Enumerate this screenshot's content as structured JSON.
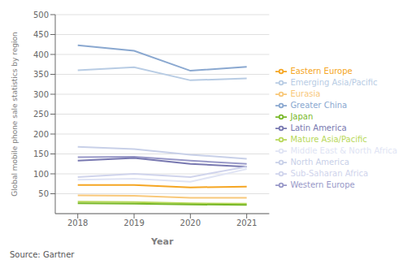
{
  "chart_data": {
    "type": "line",
    "x": [
      2018,
      2019,
      2020,
      2021
    ],
    "series": [
      {
        "name": "Greater China",
        "values": [
          423,
          409,
          359,
          369
        ],
        "color": "#8aa8d0"
      },
      {
        "name": "Emerging Asia/Pacific",
        "values": [
          360,
          368,
          335,
          340
        ],
        "color": "#b8cce4"
      },
      {
        "name": "North America",
        "values": [
          168,
          162,
          148,
          138
        ],
        "color": "#c8d0e8"
      },
      {
        "name": "Western Europe",
        "values": [
          142,
          143,
          133,
          125
        ],
        "color": "#9898c8"
      },
      {
        "name": "Latin America",
        "values": [
          133,
          140,
          125,
          118
        ],
        "color": "#7878b0"
      },
      {
        "name": "Sub-Saharan Africa",
        "values": [
          92,
          100,
          92,
          118
        ],
        "color": "#d0d4ec"
      },
      {
        "name": "Middle East & North Africa",
        "values": [
          85,
          88,
          80,
          112
        ],
        "color": "#e0e4f4"
      },
      {
        "name": "Eastern Europe",
        "values": [
          72,
          72,
          66,
          68
        ],
        "color": "#f5a623"
      },
      {
        "name": "Eurasia",
        "values": [
          46,
          45,
          40,
          40
        ],
        "color": "#f8c87a"
      },
      {
        "name": "Mature Asia/Pacific",
        "values": [
          30,
          29,
          26,
          25
        ],
        "color": "#b8d85a"
      },
      {
        "name": "Japan",
        "values": [
          26,
          25,
          23,
          22
        ],
        "color": "#78b828"
      }
    ],
    "xlabel": "Year",
    "ylabel": "Global mobile phone sale statistics by region",
    "xlim": [
      2017.6,
      2021.4
    ],
    "xticks": [
      2018,
      2019,
      2020,
      2021
    ],
    "ylim": [
      0,
      500
    ],
    "yticks": [
      50,
      100,
      150,
      200,
      250,
      300,
      350,
      400,
      450,
      500
    ],
    "grid": true,
    "legend": "right",
    "annotations": [
      "Source: Gartner"
    ]
  }
}
